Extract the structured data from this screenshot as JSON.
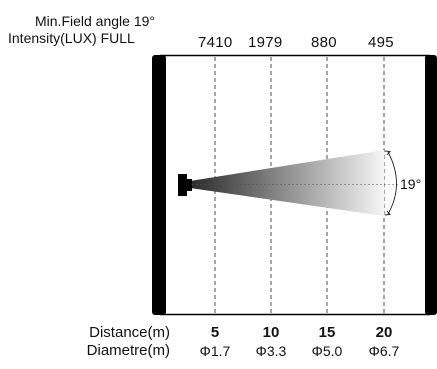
{
  "header": {
    "field_angle": "Min.Field angle 19°",
    "intensity": "Intensity(LUX) FULL"
  },
  "lux_values": [
    "7410",
    "1979",
    "880",
    "495"
  ],
  "beam": {
    "angle_label": "19°"
  },
  "rows": {
    "distance_label": "Distance(m)",
    "diameter_label": "Diametre(m)"
  },
  "distances": [
    "5",
    "10",
    "15",
    "20"
  ],
  "diameters": [
    "Φ1.7",
    "Φ3.3",
    "Φ5.0",
    "Φ6.7"
  ],
  "colors": {
    "frame": "#000000",
    "beam_start": "#2a2a2a",
    "beam_end": "#f6f6f6",
    "guide": "#222222"
  }
}
